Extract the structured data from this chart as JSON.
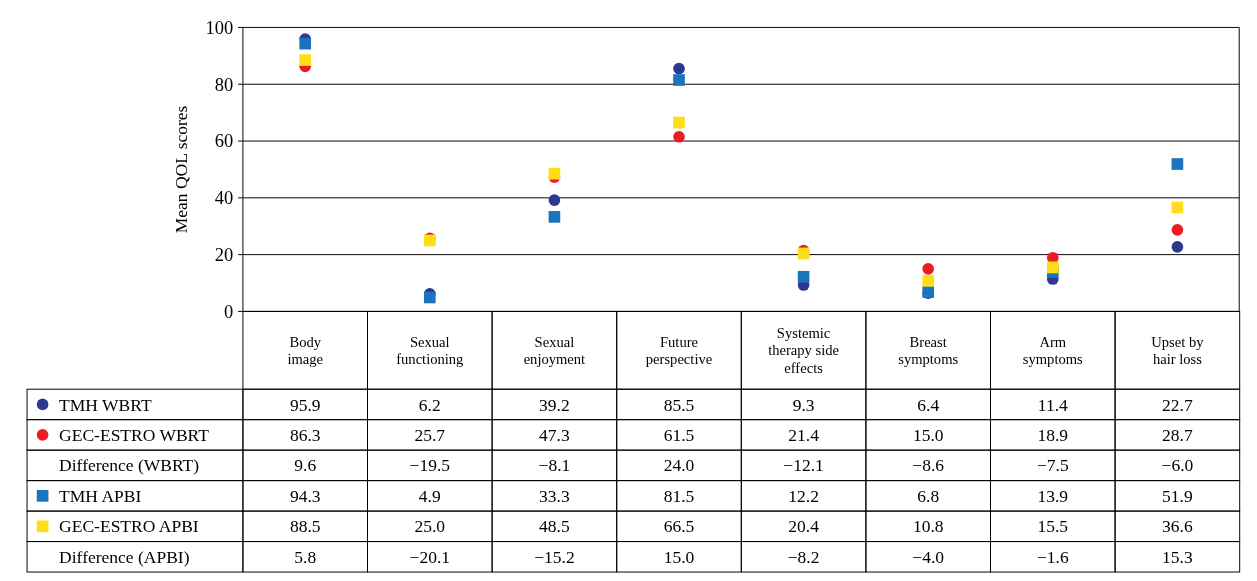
{
  "chart_data": {
    "type": "scatter",
    "ylabel": "Mean QOL scores",
    "ylim": [
      0,
      100
    ],
    "yticks": [
      0,
      20,
      40,
      60,
      80,
      100
    ],
    "grid": "y",
    "legend": "bottom left",
    "categories": [
      "Body\nimage",
      "Sexual\nfunctioning",
      "Sexual\nenjoyment",
      "Future\nperspective",
      "Systemic\ntherapy side\neffects",
      "Breast\nsymptoms",
      "Arm\nsymptoms",
      "Upset by\nhair loss"
    ],
    "series": [
      {
        "name": "TMH WBRT",
        "color": "#2b3990",
        "marker": "circle",
        "values": [
          95.9,
          6.2,
          39.2,
          85.5,
          9.3,
          6.4,
          11.4,
          22.7
        ],
        "value_labels": [
          "95.9",
          "6.2",
          "39.2",
          "85.5",
          "9.3",
          "6.4",
          "11.4",
          "22.7"
        ]
      },
      {
        "name": "GEC-ESTRO WBRT",
        "color": "#ed1c24",
        "marker": "circle",
        "values": [
          86.3,
          25.7,
          47.3,
          61.5,
          21.4,
          15.0,
          18.9,
          28.7
        ],
        "value_labels": [
          "86.3",
          "25.7",
          "47.3",
          "61.5",
          "21.4",
          "15.0",
          "18.9",
          "28.7"
        ]
      },
      {
        "name": "TMH APBI",
        "color": "#1c75bc",
        "marker": "square",
        "values": [
          94.3,
          4.9,
          33.3,
          81.5,
          12.2,
          6.8,
          13.9,
          51.9
        ],
        "value_labels": [
          "94.3",
          "4.9",
          "33.3",
          "81.5",
          "12.2",
          "6.8",
          "13.9",
          "51.9"
        ]
      },
      {
        "name": "GEC-ESTRO APBI",
        "color": "#ffde17",
        "marker": "square",
        "values": [
          88.5,
          25.0,
          48.5,
          66.5,
          20.4,
          10.8,
          15.5,
          36.6
        ],
        "value_labels": [
          "88.5",
          "25.0",
          "48.5",
          "66.5",
          "20.4",
          "10.8",
          "15.5",
          "36.6"
        ]
      }
    ],
    "annotations": [
      "Difference (WBRT)",
      "9.6",
      "−19.5",
      "−8.1",
      "24.0",
      "−12.1",
      "−8.6",
      "−7.5",
      "−6.0",
      "Difference (APBI)",
      "5.8",
      "−20.1",
      "−15.2",
      "15.0",
      "−8.2",
      "−4.0",
      "−1.6",
      "15.3"
    ]
  }
}
